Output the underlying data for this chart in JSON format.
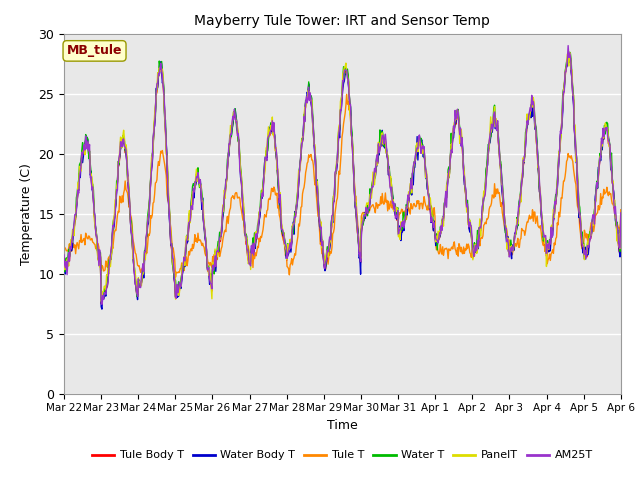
{
  "title": "Mayberry Tule Tower: IRT and Sensor Temp",
  "xlabel": "Time",
  "ylabel": "Temperature (C)",
  "ylim": [
    0,
    30
  ],
  "yticks": [
    0,
    5,
    10,
    15,
    20,
    25,
    30
  ],
  "bg_color": "#e8e8e8",
  "legend_label": "MB_tule",
  "series_colors": {
    "Tule Body T": "#ff0000",
    "Water Body T": "#0000cc",
    "Tule T": "#ff8800",
    "Water T": "#00bb00",
    "PanelT": "#dddd00",
    "AM25T": "#9933cc"
  },
  "x_tick_labels": [
    "Mar 22",
    "Mar 23",
    "Mar 24",
    "Mar 25",
    "Mar 26",
    "Mar 27",
    "Mar 28",
    "Mar 29",
    "Mar 30",
    "Mar 31",
    "Apr 1",
    "Apr 2",
    "Apr 3",
    "Apr 4",
    "Apr 5",
    "Apr 6"
  ],
  "daily_peaks": [
    21,
    21,
    27,
    18,
    23,
    22,
    25,
    27,
    21,
    21,
    23,
    23,
    24,
    28,
    22,
    22
  ],
  "daily_mins": [
    10,
    7,
    8,
    8,
    10,
    11,
    11,
    10,
    14,
    13,
    12,
    11,
    11,
    11,
    11,
    14
  ],
  "orange_peaks": [
    13,
    17,
    20,
    13,
    17,
    17,
    20,
    24,
    16,
    16,
    12,
    17,
    15,
    20,
    17,
    16
  ],
  "orange_mins": [
    12,
    10,
    10,
    10,
    11,
    11,
    10,
    10,
    15,
    15,
    12,
    12,
    12,
    11,
    13,
    15
  ]
}
